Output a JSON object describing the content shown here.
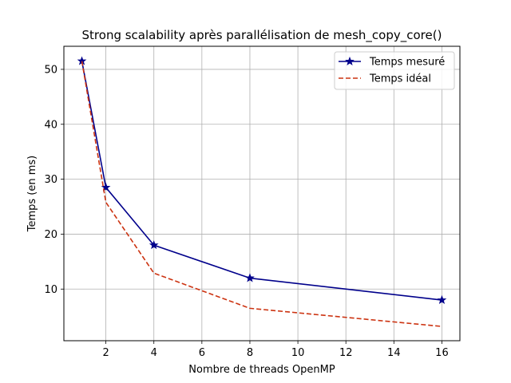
{
  "chart_data": {
    "type": "line",
    "title": "Strong scalability après parallélisation de mesh_copy_core()",
    "xlabel": "Nombre de threads OpenMP",
    "ylabel": "Temps (en ms)",
    "xlim": [
      0.25,
      16.75
    ],
    "ylim": [
      0.6,
      54.2
    ],
    "xticks": [
      2,
      4,
      6,
      8,
      10,
      12,
      14,
      16
    ],
    "yticks": [
      10,
      20,
      30,
      40,
      50
    ],
    "grid": true,
    "legend_position": "top-right",
    "series": [
      {
        "name": "Temps mesuré",
        "color": "#00008b",
        "style": "solid",
        "marker": "star",
        "x": [
          1,
          2,
          4,
          8,
          16
        ],
        "y": [
          51.5,
          28.5,
          18.0,
          12.0,
          8.0
        ]
      },
      {
        "name": "Temps idéal",
        "color": "#cc3311",
        "style": "dashed",
        "marker": "none",
        "x": [
          1,
          2,
          4,
          8,
          16
        ],
        "y": [
          51.5,
          25.8,
          12.9,
          6.5,
          3.2
        ]
      }
    ]
  }
}
